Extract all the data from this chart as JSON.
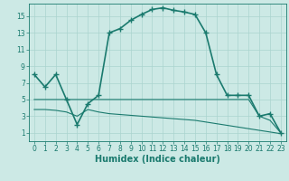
{
  "series": [
    {
      "x": [
        0,
        1,
        2,
        3,
        4,
        5,
        6,
        7,
        8,
        9,
        10,
        11,
        12,
        13,
        14,
        15,
        16,
        17,
        18,
        19,
        20,
        21,
        22,
        23
      ],
      "y": [
        8,
        6.5,
        8,
        5,
        2,
        4.5,
        5.5,
        13,
        13.5,
        14.5,
        15.2,
        15.8,
        16,
        15.7,
        15.5,
        15.2,
        13,
        8,
        5.5,
        5.5,
        5.5,
        3,
        3.3,
        1
      ],
      "color": "#1a7a6e",
      "linewidth": 1.2,
      "marker": "+",
      "markersize": 4
    },
    {
      "x": [
        0,
        1,
        2,
        3,
        4,
        5,
        6,
        7,
        8,
        9,
        10,
        11,
        12,
        13,
        14,
        15,
        16,
        17,
        18,
        19,
        20,
        21,
        22,
        23
      ],
      "y": [
        5.0,
        5.0,
        5.0,
        5.0,
        5.0,
        5.0,
        5.0,
        5.0,
        5.0,
        5.0,
        5.0,
        5.0,
        5.0,
        5.0,
        5.0,
        5.0,
        5.0,
        5.0,
        5.0,
        5.0,
        5.0,
        3.0,
        2.5,
        1.0
      ],
      "color": "#1a7a6e",
      "linewidth": 0.8,
      "marker": null,
      "markersize": 0
    },
    {
      "x": [
        0,
        1,
        2,
        3,
        4,
        5,
        6,
        7,
        8,
        9,
        10,
        11,
        12,
        13,
        14,
        15,
        16,
        17,
        18,
        19,
        20,
        21,
        22,
        23
      ],
      "y": [
        3.8,
        3.8,
        3.7,
        3.5,
        3.0,
        3.8,
        3.5,
        3.3,
        3.2,
        3.1,
        3.0,
        2.9,
        2.8,
        2.7,
        2.6,
        2.5,
        2.3,
        2.1,
        1.9,
        1.7,
        1.5,
        1.3,
        1.1,
        0.9
      ],
      "color": "#1a7a6e",
      "linewidth": 0.8,
      "marker": null,
      "markersize": 0
    }
  ],
  "xlabel": "Humidex (Indice chaleur)",
  "xlim": [
    -0.5,
    23.5
  ],
  "ylim": [
    0,
    16.5
  ],
  "xticks": [
    0,
    1,
    2,
    3,
    4,
    5,
    6,
    7,
    8,
    9,
    10,
    11,
    12,
    13,
    14,
    15,
    16,
    17,
    18,
    19,
    20,
    21,
    22,
    23
  ],
  "yticks": [
    1,
    3,
    5,
    7,
    9,
    11,
    13,
    15
  ],
  "bg_color": "#cce9e5",
  "grid_color": "#aad4cf",
  "line_color": "#1a7a6e",
  "xlabel_fontsize": 7,
  "tick_fontsize": 5.5
}
